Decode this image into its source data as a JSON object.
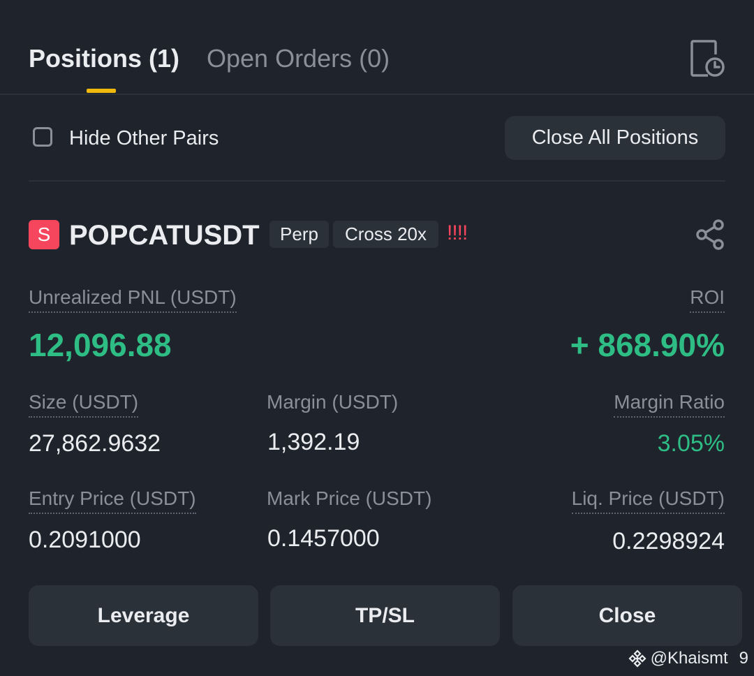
{
  "tabs": {
    "positions": "Positions (1)",
    "open_orders": "Open Orders (0)"
  },
  "filter": {
    "hide_other_pairs": "Hide Other Pairs",
    "hide_other_pairs_checked": false,
    "close_all_label": "Close All Positions"
  },
  "position": {
    "side_badge": "S",
    "symbol": "POPCATUSDT",
    "contract_tag": "Perp",
    "margin_tag": "Cross 20x",
    "warning": "!!!!",
    "pnl_label": "Unrealized PNL (USDT)",
    "pnl_value": "12,096.88",
    "roi_label": "ROI",
    "roi_value": "+ 868.90%",
    "size_label": "Size (USDT)",
    "size_value": "27,862.9632",
    "margin_label": "Margin (USDT)",
    "margin_value": "1,392.19",
    "margin_ratio_label": "Margin Ratio",
    "margin_ratio_value": "3.05%",
    "entry_label": "Entry Price (USDT)",
    "entry_value": "0.2091000",
    "mark_label": "Mark Price (USDT)",
    "mark_value": "0.1457000",
    "liq_label": "Liq. Price (USDT)",
    "liq_value": "0.2298924"
  },
  "actions": {
    "leverage": "Leverage",
    "tpsl": "TP/SL",
    "close": "Close"
  },
  "watermark": {
    "handle": "@Khaismt",
    "page": "9"
  },
  "colors": {
    "background": "#1f232b",
    "accent_yellow": "#f0b90b",
    "profit_green": "#2ebd85",
    "short_red": "#f6465d",
    "button_bg": "#2b3139"
  },
  "icons": {
    "history": "history-clock-icon",
    "share": "share-icon",
    "watermark_logo": "binance-logo-icon"
  }
}
